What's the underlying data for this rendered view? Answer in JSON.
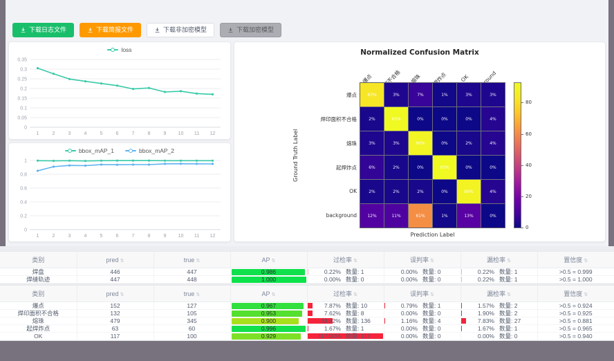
{
  "toolbar": {
    "buttons": [
      {
        "label": "下载日志文件",
        "bg": "#19be6b",
        "fg": "#ffffff",
        "border": "#19be6b"
      },
      {
        "label": "下载简报文件",
        "bg": "#ff9900",
        "fg": "#ffffff",
        "border": "#ff9900"
      },
      {
        "label": "下载非加密模型",
        "bg": "#ffffff",
        "fg": "#515a6e",
        "border": "#dcdee2"
      },
      {
        "label": "下载加密模型",
        "bg": "#abadb3",
        "fg": "#5a5b61",
        "border": "#9b9da3"
      }
    ]
  },
  "chart_data": [
    {
      "type": "line",
      "title": "loss",
      "x": [
        1,
        2,
        3,
        4,
        5,
        6,
        7,
        8,
        9,
        10,
        11,
        12
      ],
      "series": [
        {
          "name": "loss",
          "color": "#38c9a8",
          "values": [
            0.305,
            0.276,
            0.249,
            0.237,
            0.226,
            0.215,
            0.198,
            0.203,
            0.182,
            0.186,
            0.174,
            0.17
          ]
        }
      ],
      "ylim": [
        0,
        0.35
      ],
      "yticks": [
        0,
        0.05,
        0.1,
        0.15,
        0.2,
        0.25,
        0.3,
        0.35
      ],
      "grid": true,
      "legend_position": "top"
    },
    {
      "type": "line",
      "title": "bbox_mAP",
      "x": [
        1,
        2,
        3,
        4,
        5,
        6,
        7,
        8,
        9,
        10,
        11,
        12
      ],
      "series": [
        {
          "name": "bbox_mAP_1",
          "color": "#38c9a8",
          "values": [
            0.997,
            0.994,
            0.997,
            0.993,
            0.997,
            0.998,
            0.998,
            0.998,
            0.997,
            0.997,
            0.997,
            0.997
          ]
        },
        {
          "name": "bbox_mAP_2",
          "color": "#5cb3f0",
          "values": [
            0.85,
            0.91,
            0.928,
            0.925,
            0.94,
            0.938,
            0.94,
            0.94,
            0.951,
            0.952,
            0.951,
            0.95
          ]
        }
      ],
      "ylim": [
        0,
        1
      ],
      "yticks": [
        0,
        0.2,
        0.4,
        0.6,
        0.8,
        1
      ],
      "grid": true,
      "legend_position": "top"
    },
    {
      "type": "heatmap",
      "title": "Normalized Confusion Matrix",
      "xlabel": "Prediction Label",
      "ylabel": "Ground Truth Label",
      "labels": [
        "爆点",
        "焊印面积不合格",
        "熔珠",
        "起焊炸点",
        "OK",
        "background"
      ],
      "matrix": [
        [
          83,
          3,
          7,
          1,
          3,
          3
        ],
        [
          2,
          93,
          0,
          0,
          0,
          4
        ],
        [
          3,
          3,
          90,
          0,
          2,
          4
        ],
        [
          6,
          2,
          0,
          93,
          0,
          0
        ],
        [
          2,
          2,
          2,
          0,
          89,
          4
        ],
        [
          12,
          11,
          61,
          1,
          13,
          0
        ]
      ],
      "unit": "%",
      "vmax": 93,
      "colorbar_ticks": [
        0,
        20,
        40,
        60,
        80
      ],
      "colormap": "plasma"
    }
  ],
  "tables": [
    {
      "headers": [
        "类别",
        "pred",
        "true",
        "AP",
        "过检率",
        "误判率",
        "漏检率",
        "置信度"
      ],
      "sortable": [
        false,
        true,
        true,
        true,
        true,
        true,
        true,
        true
      ],
      "rows": [
        {
          "class": "焊盘",
          "pred": "446",
          "true": "447",
          "ap": 0.986,
          "ap_label": "0.986",
          "ap_color": "#10e04c",
          "over": {
            "rate": "0.22%",
            "pct": 0.22,
            "count": "数量: 1"
          },
          "mis": {
            "rate": "0.00%",
            "pct": 0,
            "count": "数量: 0"
          },
          "miss": {
            "rate": "0.22%",
            "pct": 0.22,
            "count": "数量: 1"
          },
          "conf": ">0.5 = 0.999"
        },
        {
          "class": "焊缝轨迹",
          "pred": "447",
          "true": "448",
          "ap": 1.0,
          "ap_label": "1.000",
          "ap_color": "#0ce24a",
          "over": {
            "rate": "0.00%",
            "pct": 0,
            "count": "数量: 0"
          },
          "mis": {
            "rate": "0.00%",
            "pct": 0,
            "count": "数量: 0"
          },
          "miss": {
            "rate": "0.22%",
            "pct": 0.22,
            "count": "数量: 1"
          },
          "conf": ">0.5 = 1.000"
        }
      ]
    },
    {
      "headers": [
        "类别",
        "pred",
        "true",
        "AP",
        "过检率",
        "误判率",
        "漏检率",
        "置信度"
      ],
      "sortable": [
        false,
        true,
        true,
        true,
        true,
        true,
        true,
        true
      ],
      "rows": [
        {
          "class": "爆点",
          "pred": "152",
          "true": "127",
          "ap": 0.967,
          "ap_label": "0.967",
          "ap_color": "#31df3d",
          "over": {
            "rate": "7.87%",
            "pct": 7.87,
            "count": "数量: 10"
          },
          "mis": {
            "rate": "0.79%",
            "pct": 0.79,
            "count": "数量: 1"
          },
          "miss": {
            "rate": "1.57%",
            "pct": 1.57,
            "count": "数量: 2"
          },
          "conf": ">0.5 = 0.924"
        },
        {
          "class": "焊印面积不合格",
          "pred": "132",
          "true": "105",
          "ap": 0.953,
          "ap_label": "0.953",
          "ap_color": "#55e02f",
          "over": {
            "rate": "7.62%",
            "pct": 7.62,
            "count": "数量: 8"
          },
          "mis": {
            "rate": "0.00%",
            "pct": 0,
            "count": "数量: 0"
          },
          "miss": {
            "rate": "1.90%",
            "pct": 1.9,
            "count": "数量: 2"
          },
          "conf": ">0.5 = 0.925"
        },
        {
          "class": "熔珠",
          "pred": "479",
          "true": "345",
          "ap": 0.9,
          "ap_label": "0.900",
          "ap_color": "#a9e01d",
          "over": {
            "rate": "39.42%",
            "pct": 39.42,
            "count": "数量: 136"
          },
          "mis": {
            "rate": "1.16%",
            "pct": 1.16,
            "count": "数量: 4"
          },
          "miss": {
            "rate": "7.83%",
            "pct": 7.83,
            "count": "数量: 27"
          },
          "conf": ">0.5 = 0.881"
        },
        {
          "class": "起焊炸点",
          "pred": "63",
          "true": "60",
          "ap": 0.996,
          "ap_label": "0.996",
          "ap_color": "#12e14b",
          "over": {
            "rate": "1.67%",
            "pct": 1.67,
            "count": "数量: 1"
          },
          "mis": {
            "rate": "0.00%",
            "pct": 0,
            "count": "数量: 0"
          },
          "miss": {
            "rate": "1.67%",
            "pct": 1.67,
            "count": "数量: 1"
          },
          "conf": ">0.5 = 0.965"
        },
        {
          "class": "OK",
          "pred": "117",
          "true": "100",
          "ap": 0.929,
          "ap_label": "0.929",
          "ap_color": "#7de026",
          "over": {
            "rate": "117.00%",
            "pct": 117,
            "count": "数量: 117"
          },
          "mis": {
            "rate": "0.00%",
            "pct": 0,
            "count": "数量: 0"
          },
          "miss": {
            "rate": "0.00%",
            "pct": 0,
            "count": "数量: 0"
          },
          "conf": ">0.5 = 0.940"
        }
      ]
    }
  ]
}
